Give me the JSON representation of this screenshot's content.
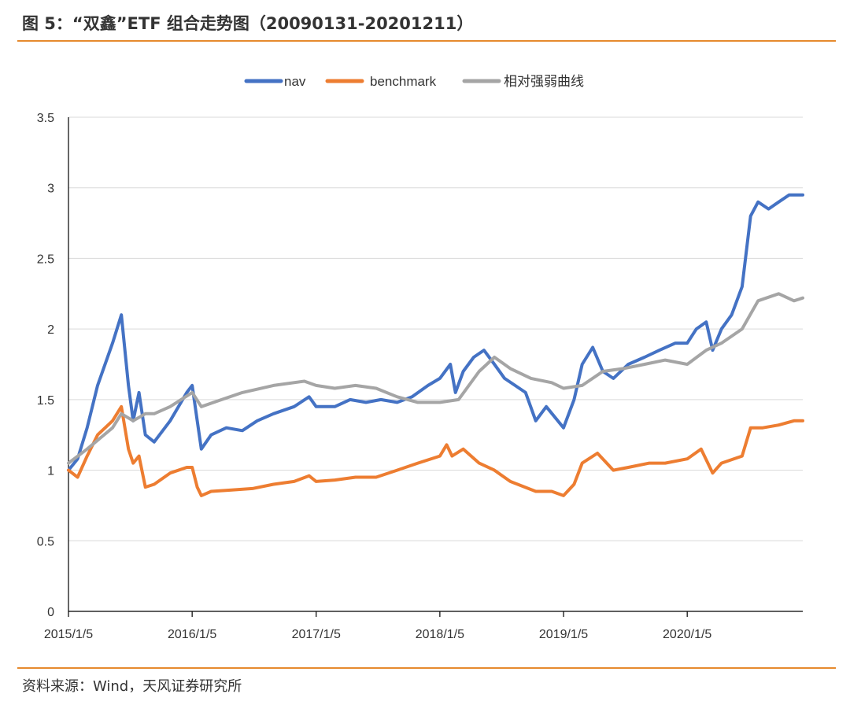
{
  "header": {
    "title": "图 5：“双鑫”ETF 组合走势图（20090131-20201211）"
  },
  "footer": {
    "source": "资料来源：Wind，天风证券研究所"
  },
  "colors": {
    "accent_rule": "#E68A2E",
    "nav": "#4472C4",
    "benchmark": "#ED7D31",
    "relative": "#A5A5A5",
    "grid": "#D9D9D9"
  },
  "chart_data": {
    "type": "line",
    "title": "",
    "xlabel": "",
    "ylabel": "",
    "ylim": [
      0,
      3.5
    ],
    "y_ticks": [
      "0",
      "0.5",
      "1",
      "1.5",
      "2",
      "2.5",
      "3",
      "3.5"
    ],
    "x_ticks": [
      "2015/1/5",
      "2016/1/5",
      "2017/1/5",
      "2018/1/5",
      "2019/1/5",
      "2020/1/5"
    ],
    "x_range": [
      "2015/1/5",
      "2020/12/11"
    ],
    "grid": "horizontal",
    "legend_position": "top-center",
    "series": [
      {
        "name": "nav",
        "color": "#4472C4",
        "points": [
          [
            "2015/1/5",
            1.0
          ],
          [
            "2015/2/1",
            1.08
          ],
          [
            "2015/3/1",
            1.3
          ],
          [
            "2015/4/1",
            1.6
          ],
          [
            "2015/5/15",
            1.9
          ],
          [
            "2015/6/10",
            2.1
          ],
          [
            "2015/7/1",
            1.6
          ],
          [
            "2015/7/15",
            1.35
          ],
          [
            "2015/8/1",
            1.55
          ],
          [
            "2015/8/20",
            1.25
          ],
          [
            "2015/9/15",
            1.2
          ],
          [
            "2015/11/1",
            1.35
          ],
          [
            "2015/12/20",
            1.55
          ],
          [
            "2016/1/5",
            1.6
          ],
          [
            "2016/1/20",
            1.35
          ],
          [
            "2016/2/1",
            1.15
          ],
          [
            "2016/3/1",
            1.25
          ],
          [
            "2016/4/15",
            1.3
          ],
          [
            "2016/6/1",
            1.28
          ],
          [
            "2016/7/15",
            1.35
          ],
          [
            "2016/9/1",
            1.4
          ],
          [
            "2016/11/1",
            1.45
          ],
          [
            "2016/12/15",
            1.52
          ],
          [
            "2017/1/5",
            1.45
          ],
          [
            "2017/3/1",
            1.45
          ],
          [
            "2017/4/15",
            1.5
          ],
          [
            "2017/6/1",
            1.48
          ],
          [
            "2017/7/15",
            1.5
          ],
          [
            "2017/9/1",
            1.48
          ],
          [
            "2017/10/15",
            1.52
          ],
          [
            "2017/12/1",
            1.6
          ],
          [
            "2018/1/5",
            1.65
          ],
          [
            "2018/2/5",
            1.75
          ],
          [
            "2018/2/20",
            1.55
          ],
          [
            "2018/3/15",
            1.7
          ],
          [
            "2018/4/15",
            1.8
          ],
          [
            "2018/5/15",
            1.85
          ],
          [
            "2018/6/15",
            1.75
          ],
          [
            "2018/7/15",
            1.65
          ],
          [
            "2018/8/15",
            1.6
          ],
          [
            "2018/9/15",
            1.55
          ],
          [
            "2018/10/15",
            1.35
          ],
          [
            "2018/11/15",
            1.45
          ],
          [
            "2019/1/5",
            1.3
          ],
          [
            "2019/2/5",
            1.5
          ],
          [
            "2019/3/1",
            1.75
          ],
          [
            "2019/4/1",
            1.87
          ],
          [
            "2019/5/1",
            1.7
          ],
          [
            "2019/6/1",
            1.65
          ],
          [
            "2019/7/15",
            1.75
          ],
          [
            "2019/9/1",
            1.8
          ],
          [
            "2019/10/15",
            1.85
          ],
          [
            "2019/12/1",
            1.9
          ],
          [
            "2020/1/5",
            1.9
          ],
          [
            "2020/2/1",
            2.0
          ],
          [
            "2020/3/1",
            2.05
          ],
          [
            "2020/3/20",
            1.85
          ],
          [
            "2020/4/15",
            2.0
          ],
          [
            "2020/5/15",
            2.1
          ],
          [
            "2020/6/15",
            2.3
          ],
          [
            "2020/7/10",
            2.8
          ],
          [
            "2020/8/1",
            2.9
          ],
          [
            "2020/9/1",
            2.85
          ],
          [
            "2020/10/1",
            2.9
          ],
          [
            "2020/11/1",
            2.95
          ],
          [
            "2020/12/11",
            2.95
          ]
        ]
      },
      {
        "name": "benchmark",
        "color": "#ED7D31",
        "points": [
          [
            "2015/1/5",
            1.0
          ],
          [
            "2015/2/1",
            0.95
          ],
          [
            "2015/3/1",
            1.1
          ],
          [
            "2015/4/1",
            1.25
          ],
          [
            "2015/5/15",
            1.35
          ],
          [
            "2015/6/10",
            1.45
          ],
          [
            "2015/7/1",
            1.15
          ],
          [
            "2015/7/15",
            1.05
          ],
          [
            "2015/8/1",
            1.1
          ],
          [
            "2015/8/20",
            0.88
          ],
          [
            "2015/9/15",
            0.9
          ],
          [
            "2015/11/1",
            0.98
          ],
          [
            "2015/12/20",
            1.02
          ],
          [
            "2016/1/5",
            1.02
          ],
          [
            "2016/1/20",
            0.88
          ],
          [
            "2016/2/1",
            0.82
          ],
          [
            "2016/3/1",
            0.85
          ],
          [
            "2016/5/1",
            0.86
          ],
          [
            "2016/7/1",
            0.87
          ],
          [
            "2016/9/1",
            0.9
          ],
          [
            "2016/11/1",
            0.92
          ],
          [
            "2016/12/15",
            0.96
          ],
          [
            "2017/1/5",
            0.92
          ],
          [
            "2017/3/1",
            0.93
          ],
          [
            "2017/5/1",
            0.95
          ],
          [
            "2017/7/1",
            0.95
          ],
          [
            "2017/9/1",
            1.0
          ],
          [
            "2017/11/1",
            1.05
          ],
          [
            "2018/1/5",
            1.1
          ],
          [
            "2018/1/25",
            1.18
          ],
          [
            "2018/2/10",
            1.1
          ],
          [
            "2018/3/15",
            1.15
          ],
          [
            "2018/5/1",
            1.05
          ],
          [
            "2018/6/15",
            1.0
          ],
          [
            "2018/8/1",
            0.92
          ],
          [
            "2018/10/15",
            0.85
          ],
          [
            "2018/12/1",
            0.85
          ],
          [
            "2019/1/5",
            0.82
          ],
          [
            "2019/2/5",
            0.9
          ],
          [
            "2019/3/1",
            1.05
          ],
          [
            "2019/4/15",
            1.12
          ],
          [
            "2019/6/1",
            1.0
          ],
          [
            "2019/7/15",
            1.02
          ],
          [
            "2019/9/15",
            1.05
          ],
          [
            "2019/11/1",
            1.05
          ],
          [
            "2020/1/5",
            1.08
          ],
          [
            "2020/2/15",
            1.15
          ],
          [
            "2020/3/20",
            0.98
          ],
          [
            "2020/4/15",
            1.05
          ],
          [
            "2020/6/15",
            1.1
          ],
          [
            "2020/7/10",
            1.3
          ],
          [
            "2020/8/15",
            1.3
          ],
          [
            "2020/10/1",
            1.32
          ],
          [
            "2020/11/15",
            1.35
          ],
          [
            "2020/12/11",
            1.35
          ]
        ]
      },
      {
        "name": "相对强弱曲线",
        "color": "#A5A5A5",
        "points": [
          [
            "2015/1/5",
            1.05
          ],
          [
            "2015/3/1",
            1.15
          ],
          [
            "2015/5/15",
            1.3
          ],
          [
            "2015/6/10",
            1.4
          ],
          [
            "2015/7/15",
            1.35
          ],
          [
            "2015/8/20",
            1.4
          ],
          [
            "2015/9/15",
            1.4
          ],
          [
            "2015/11/1",
            1.45
          ],
          [
            "2016/1/5",
            1.55
          ],
          [
            "2016/2/1",
            1.45
          ],
          [
            "2016/4/1",
            1.5
          ],
          [
            "2016/6/1",
            1.55
          ],
          [
            "2016/9/1",
            1.6
          ],
          [
            "2016/12/1",
            1.63
          ],
          [
            "2017/1/5",
            1.6
          ],
          [
            "2017/3/1",
            1.58
          ],
          [
            "2017/5/1",
            1.6
          ],
          [
            "2017/7/1",
            1.58
          ],
          [
            "2017/9/1",
            1.52
          ],
          [
            "2017/11/1",
            1.48
          ],
          [
            "2018/1/5",
            1.48
          ],
          [
            "2018/3/1",
            1.5
          ],
          [
            "2018/5/1",
            1.7
          ],
          [
            "2018/6/15",
            1.8
          ],
          [
            "2018/8/1",
            1.72
          ],
          [
            "2018/10/1",
            1.65
          ],
          [
            "2018/12/1",
            1.62
          ],
          [
            "2019/1/5",
            1.58
          ],
          [
            "2019/3/1",
            1.6
          ],
          [
            "2019/5/1",
            1.7
          ],
          [
            "2019/7/1",
            1.72
          ],
          [
            "2019/9/1",
            1.75
          ],
          [
            "2019/11/1",
            1.78
          ],
          [
            "2020/1/5",
            1.75
          ],
          [
            "2020/3/1",
            1.85
          ],
          [
            "2020/4/15",
            1.9
          ],
          [
            "2020/6/15",
            2.0
          ],
          [
            "2020/8/1",
            2.2
          ],
          [
            "2020/10/1",
            2.25
          ],
          [
            "2020/11/15",
            2.2
          ],
          [
            "2020/12/11",
            2.22
          ]
        ]
      }
    ]
  }
}
